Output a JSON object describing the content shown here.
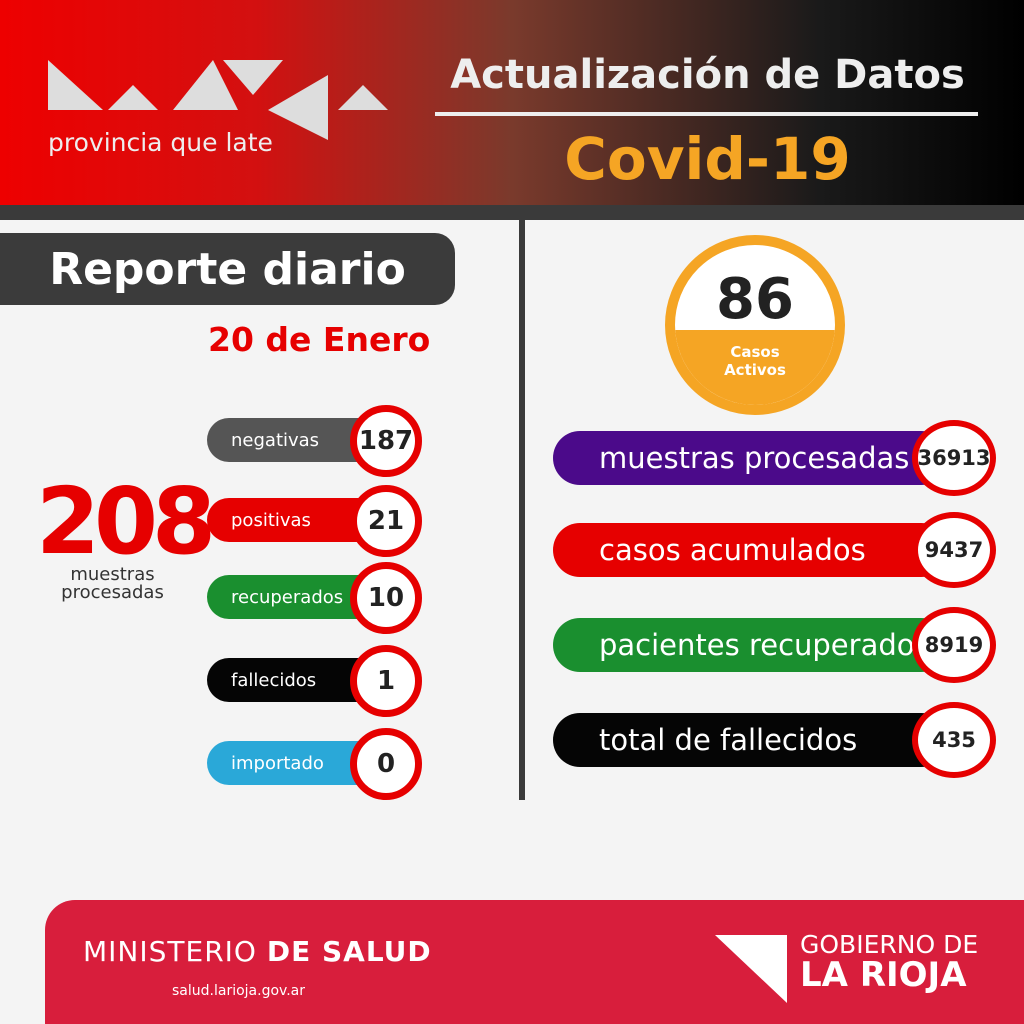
{
  "header": {
    "tagline": "provincia que late",
    "title": "Actualización de Datos",
    "subtitle": "Covid-19"
  },
  "daily": {
    "title": "Reporte diario",
    "date": "20 de Enero",
    "total": "208",
    "total_label": "muestras procesadas",
    "items": [
      {
        "label": "negativas",
        "value": "187",
        "color": "#555555"
      },
      {
        "label": "positivas",
        "value": "21",
        "color": "#e60000"
      },
      {
        "label": "recuperados",
        "value": "10",
        "color": "#1a8f2f"
      },
      {
        "label": "fallecidos",
        "value": "1",
        "color": "#050505"
      },
      {
        "label": "importado",
        "value": "0",
        "color": "#2aa8d8"
      }
    ]
  },
  "active": {
    "value": "86",
    "label": "Casos Activos"
  },
  "totals": [
    {
      "label": "muestras procesadas",
      "value": "36913",
      "color": "#4b0a8a"
    },
    {
      "label": "casos acumulados",
      "value": "9437",
      "color": "#e60000"
    },
    {
      "label": "pacientes recuperados",
      "value": "8919",
      "color": "#1a8f2f"
    },
    {
      "label": "total de fallecidos",
      "value": "435",
      "color": "#050505"
    }
  ],
  "footer": {
    "ministry": "MINISTERIO",
    "ministry_bold": "DE SALUD",
    "website": "salud.larioja.gov.ar",
    "gov_top": "GOBIERNO DE",
    "gov_bottom": "LA RIOJA"
  }
}
